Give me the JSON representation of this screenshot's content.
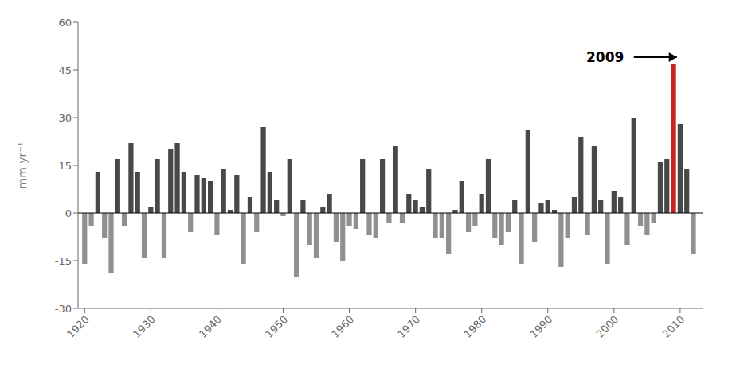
{
  "chart_data": {
    "type": "bar",
    "x": [
      1920,
      1921,
      1922,
      1923,
      1924,
      1925,
      1926,
      1927,
      1928,
      1929,
      1930,
      1931,
      1932,
      1933,
      1934,
      1935,
      1936,
      1937,
      1938,
      1939,
      1940,
      1941,
      1942,
      1943,
      1944,
      1945,
      1946,
      1947,
      1948,
      1949,
      1950,
      1951,
      1952,
      1953,
      1954,
      1955,
      1956,
      1957,
      1958,
      1959,
      1960,
      1961,
      1962,
      1963,
      1964,
      1965,
      1966,
      1967,
      1968,
      1969,
      1970,
      1971,
      1972,
      1973,
      1974,
      1975,
      1976,
      1977,
      1978,
      1979,
      1980,
      1981,
      1982,
      1983,
      1984,
      1985,
      1986,
      1987,
      1988,
      1989,
      1990,
      1991,
      1992,
      1993,
      1994,
      1995,
      1996,
      1997,
      1998,
      1999,
      2000,
      2001,
      2002,
      2003,
      2004,
      2005,
      2006,
      2007,
      2008,
      2009,
      2010,
      2011,
      2012
    ],
    "values": [
      -16,
      -4,
      13,
      -8,
      -19,
      17,
      -4,
      22,
      13,
      -14,
      2,
      17,
      -14,
      20,
      22,
      13,
      -6,
      12,
      11,
      10,
      -7,
      14,
      1,
      12,
      -16,
      5,
      -6,
      27,
      13,
      4,
      -1,
      17,
      -20,
      4,
      -10,
      -14,
      2,
      6,
      -9,
      -15,
      -4,
      -5,
      17,
      -7,
      -8,
      17,
      -3,
      21,
      -3,
      6,
      4,
      2,
      14,
      -8,
      -8,
      -13,
      1,
      10,
      -6,
      -4,
      6,
      17,
      -8,
      -10,
      -6,
      4,
      -16,
      26,
      -9,
      3,
      4,
      1,
      -17,
      -8,
      5,
      24,
      -7,
      21,
      4,
      -16,
      7,
      5,
      -10,
      30,
      -4,
      -7,
      -3,
      16,
      17,
      47,
      28,
      14,
      -13
    ],
    "colors": [
      "#909090",
      "#909090",
      "#484848",
      "#909090",
      "#909090",
      "#484848",
      "#909090",
      "#484848",
      "#484848",
      "#909090",
      "#484848",
      "#484848",
      "#909090",
      "#484848",
      "#484848",
      "#484848",
      "#909090",
      "#484848",
      "#484848",
      "#484848",
      "#909090",
      "#484848",
      "#484848",
      "#484848",
      "#909090",
      "#484848",
      "#909090",
      "#484848",
      "#484848",
      "#484848",
      "#909090",
      "#484848",
      "#909090",
      "#484848",
      "#909090",
      "#909090",
      "#484848",
      "#484848",
      "#909090",
      "#909090",
      "#909090",
      "#909090",
      "#484848",
      "#909090",
      "#909090",
      "#484848",
      "#909090",
      "#484848",
      "#909090",
      "#484848",
      "#484848",
      "#484848",
      "#484848",
      "#909090",
      "#909090",
      "#909090",
      "#484848",
      "#484848",
      "#909090",
      "#909090",
      "#484848",
      "#484848",
      "#909090",
      "#909090",
      "#909090",
      "#484848",
      "#909090",
      "#484848",
      "#909090",
      "#484848",
      "#484848",
      "#484848",
      "#909090",
      "#909090",
      "#484848",
      "#484848",
      "#909090",
      "#484848",
      "#484848",
      "#909090",
      "#484848",
      "#484848",
      "#909090",
      "#484848",
      "#909090",
      "#909090",
      "#909090",
      "#484848",
      "#484848",
      "#cc2222",
      "#484848",
      "#484848",
      "#909090"
    ],
    "ylabel": "mm yr⁻¹",
    "xlim": [
      1919.0,
      2013.5
    ],
    "xticks": [
      1920,
      1930,
      1940,
      1950,
      1960,
      1970,
      1980,
      1990,
      2000,
      2010
    ],
    "ylim": [
      -30,
      60
    ],
    "yticks": [
      -30,
      -15,
      0,
      15,
      30,
      45,
      60
    ],
    "annotations": [
      {
        "text": "2009",
        "x": 2001.5,
        "y": 49,
        "arrow_x": [
          2003.0,
          2009.5
        ]
      }
    ]
  }
}
